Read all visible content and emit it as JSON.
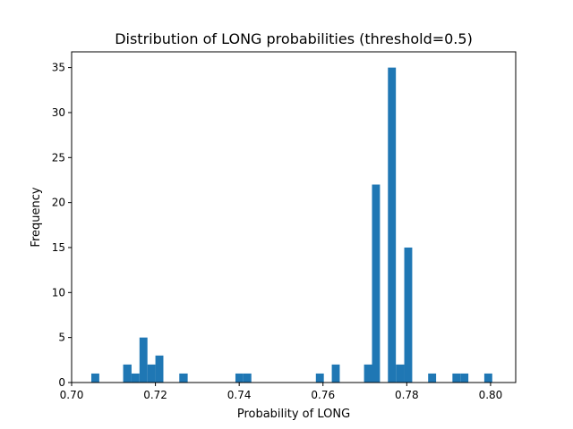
{
  "chart_data": {
    "type": "bar",
    "title": "Distribution of LONG probabilities (threshold=0.5)",
    "xlabel": "Probability of LONG",
    "ylabel": "Frequency",
    "xlim": [
      0.7,
      0.806
    ],
    "ylim": [
      0,
      36.75
    ],
    "x_ticks": [
      0.7,
      0.72,
      0.74,
      0.76,
      0.78,
      0.8
    ],
    "x_tick_labels": [
      "0.70",
      "0.72",
      "0.74",
      "0.76",
      "0.78",
      "0.80"
    ],
    "y_ticks": [
      0,
      5,
      10,
      15,
      20,
      25,
      30,
      35
    ],
    "y_tick_labels": [
      "0",
      "5",
      "10",
      "15",
      "20",
      "25",
      "30",
      "35"
    ],
    "bar_color": "#1f77b4",
    "grid": false,
    "legend": "none",
    "bins": [
      {
        "x0": 0.7047,
        "x1": 0.7066,
        "count": 1
      },
      {
        "x0": 0.7123,
        "x1": 0.7143,
        "count": 2
      },
      {
        "x0": 0.7143,
        "x1": 0.7162,
        "count": 1
      },
      {
        "x0": 0.7162,
        "x1": 0.7181,
        "count": 5
      },
      {
        "x0": 0.7181,
        "x1": 0.72,
        "count": 2
      },
      {
        "x0": 0.72,
        "x1": 0.7219,
        "count": 3
      },
      {
        "x0": 0.7257,
        "x1": 0.7277,
        "count": 1
      },
      {
        "x0": 0.7391,
        "x1": 0.741,
        "count": 1
      },
      {
        "x0": 0.741,
        "x1": 0.7429,
        "count": 1
      },
      {
        "x0": 0.7583,
        "x1": 0.7602,
        "count": 1
      },
      {
        "x0": 0.7621,
        "x1": 0.764,
        "count": 2
      },
      {
        "x0": 0.7698,
        "x1": 0.7717,
        "count": 2
      },
      {
        "x0": 0.7717,
        "x1": 0.7736,
        "count": 22
      },
      {
        "x0": 0.7755,
        "x1": 0.7774,
        "count": 35
      },
      {
        "x0": 0.7774,
        "x1": 0.7794,
        "count": 2
      },
      {
        "x0": 0.7794,
        "x1": 0.7813,
        "count": 15
      },
      {
        "x0": 0.7851,
        "x1": 0.787,
        "count": 1
      },
      {
        "x0": 0.7909,
        "x1": 0.7928,
        "count": 1
      },
      {
        "x0": 0.7928,
        "x1": 0.7947,
        "count": 1
      },
      {
        "x0": 0.7985,
        "x1": 0.8004,
        "count": 1
      }
    ]
  }
}
